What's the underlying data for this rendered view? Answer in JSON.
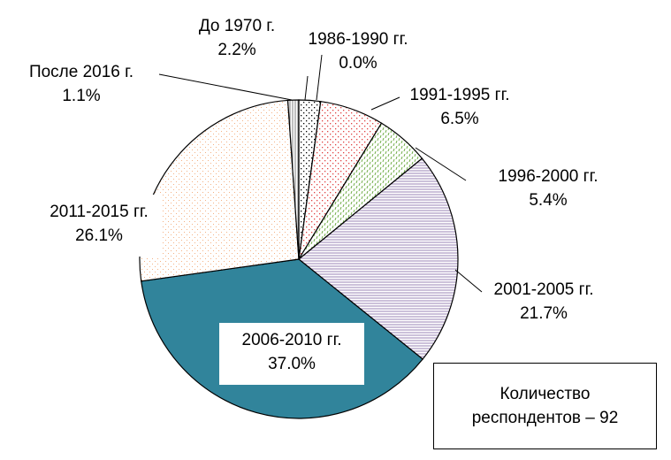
{
  "chart_data": {
    "type": "pie",
    "categories": [
      "До 1970 г.",
      "1986-1990 гг.",
      "1991-1995 гг.",
      "1996-2000 гг.",
      "2001-2005 гг.",
      "2006-2010 гг.",
      "2011-2015 гг.",
      "После 2016 г."
    ],
    "values": [
      2.2,
      0.0,
      6.5,
      5.4,
      21.7,
      37.0,
      26.1,
      1.1
    ],
    "value_labels": [
      "2.2%",
      "0.0%",
      "6.5%",
      "5.4%",
      "21.7%",
      "37.0%",
      "26.1%",
      "1.1%"
    ],
    "colors": [
      "#000000",
      "#000000",
      "#e04040",
      "#70ad47",
      "#8064a2",
      "#31849b",
      "#f4b183",
      "#808080"
    ],
    "annotation": "Количество респондентов – 92"
  }
}
